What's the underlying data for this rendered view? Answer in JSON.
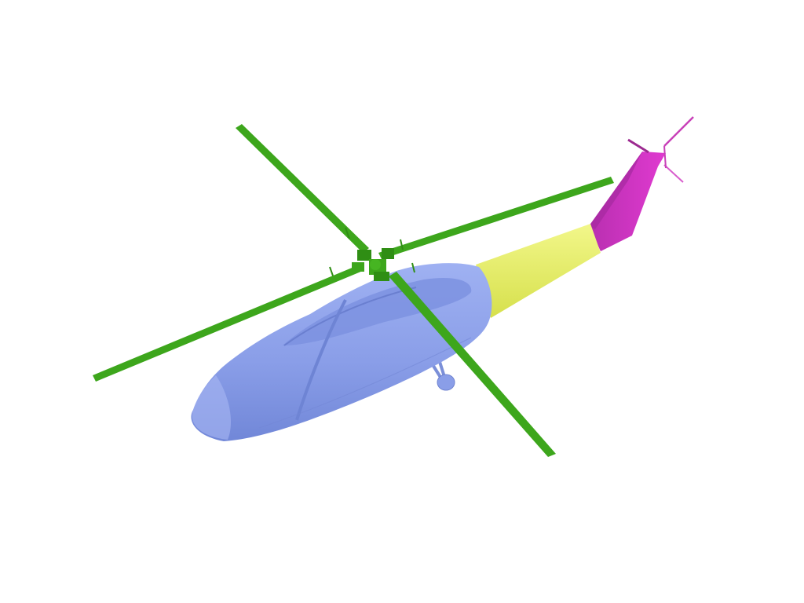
{
  "scene": {
    "background": "#ffffff",
    "subject": "helicopter-3d-part-segmentation",
    "parts": [
      {
        "name": "fuselage",
        "color": "#8a9ee8"
      },
      {
        "name": "tail-boom",
        "color": "#e6f06a"
      },
      {
        "name": "tail-fin",
        "color": "#d832c9"
      },
      {
        "name": "main-rotor",
        "color": "#3da61c"
      },
      {
        "name": "tail-rotor",
        "color": "#c840b8"
      }
    ]
  }
}
